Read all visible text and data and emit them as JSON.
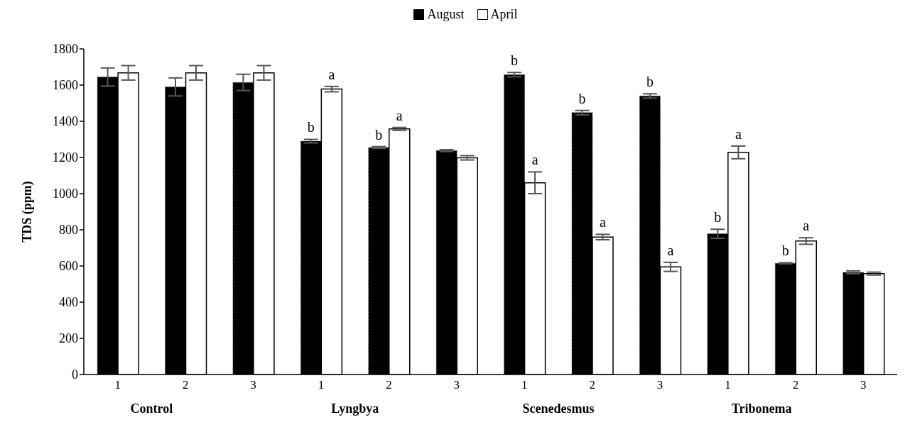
{
  "chart_data": {
    "type": "bar",
    "ylabel": "TDS (ppm)",
    "categories": [
      "1",
      "2",
      "3",
      "1",
      "2",
      "3",
      "1",
      "2",
      "3",
      "1",
      "2",
      "3"
    ],
    "series": [
      {
        "name": "August",
        "color": "#000000",
        "values": [
          1645,
          1590,
          1615,
          1290,
          1255,
          1238,
          1658,
          1448,
          1540,
          778,
          615,
          565
        ],
        "errors": [
          50,
          50,
          45,
          10,
          5,
          5,
          12,
          12,
          12,
          25,
          3,
          8
        ],
        "value_labels": [
          null,
          null,
          null,
          "b",
          "b",
          null,
          "b",
          "b",
          "b",
          "b",
          "b",
          null
        ]
      },
      {
        "name": "April",
        "color": "#ffffff",
        "values": [
          1668,
          1668,
          1668,
          1578,
          1358,
          1198,
          1060,
          760,
          595,
          1228,
          738,
          558
        ],
        "errors": [
          40,
          40,
          40,
          15,
          8,
          12,
          60,
          15,
          25,
          35,
          18,
          8
        ],
        "value_labels": [
          null,
          null,
          null,
          "a",
          "a",
          null,
          "a",
          "a",
          "a",
          "a",
          "a",
          null
        ]
      }
    ],
    "ylim": [
      0,
      1800
    ],
    "yticks": [
      0,
      200,
      400,
      600,
      800,
      1000,
      1200,
      1400,
      1600,
      1800
    ],
    "legend": "top",
    "grid": false,
    "annotations": [
      "Control",
      "Lyngbya",
      "Scenedesmus",
      "Tribonema"
    ]
  }
}
